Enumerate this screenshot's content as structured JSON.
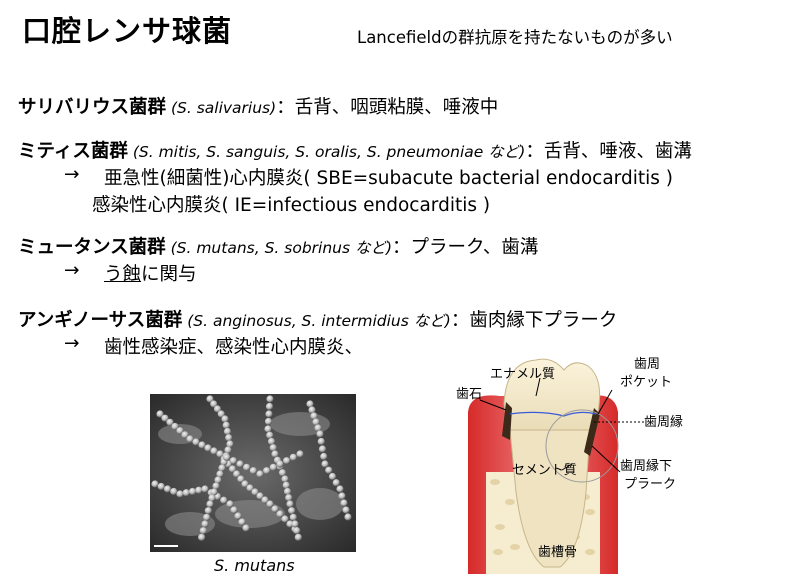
{
  "slide": {
    "title": "口腔レンサ球菌",
    "note": "Lancefieldの群抗原を持たないものが多い"
  },
  "groups": [
    {
      "name": "サリバリウス菌群",
      "species_open": " (",
      "species": "S. salivarius",
      "species_close": ")",
      "habitat": "：舌背、咽頭粘膜、唾液中"
    },
    {
      "name": "ミティス菌群",
      "species_open": " (",
      "species": "S. mitis, S. sanguis, S. oralis, S. pneumoniae",
      "species_close": " など)",
      "habitat": "：舌背、唾液、歯溝",
      "arrow": "→",
      "detail1": "亜急性(細菌性)心内膜炎( SBE=subacute bacterial endocarditis )",
      "detail2": "感染性心内膜炎( IE=infectious endocarditis )"
    },
    {
      "name": "ミュータンス菌群",
      "species_open": " (",
      "species": "S. mutans, S. sobrinus",
      "species_close": " など)",
      "habitat": "：プラーク、歯溝",
      "arrow": "→",
      "detail_underlined": "う蝕",
      "detail_rest": "に関与"
    },
    {
      "name": "アンギノーサス菌群",
      "species_open": " (",
      "species": "S. anginosus, S. intermidius",
      "species_close": " など)",
      "habitat": "：歯肉縁下プラーク",
      "arrow": "→",
      "detail1": "歯性感染症、感染性心内膜炎、"
    }
  ],
  "micrograph": {
    "caption": "S. mutans"
  },
  "tooth_diagram": {
    "labels": {
      "enamel": "エナメル質",
      "calculus": "歯石",
      "pocket_line1": "歯周",
      "pocket_line2": "ポケット",
      "gingival_margin": "歯周縁",
      "cementum": "セメント質",
      "subgingival_line1": "歯周縁下",
      "subgingival_line2": "プラーク",
      "alveolar_bone": "歯槽骨"
    }
  }
}
